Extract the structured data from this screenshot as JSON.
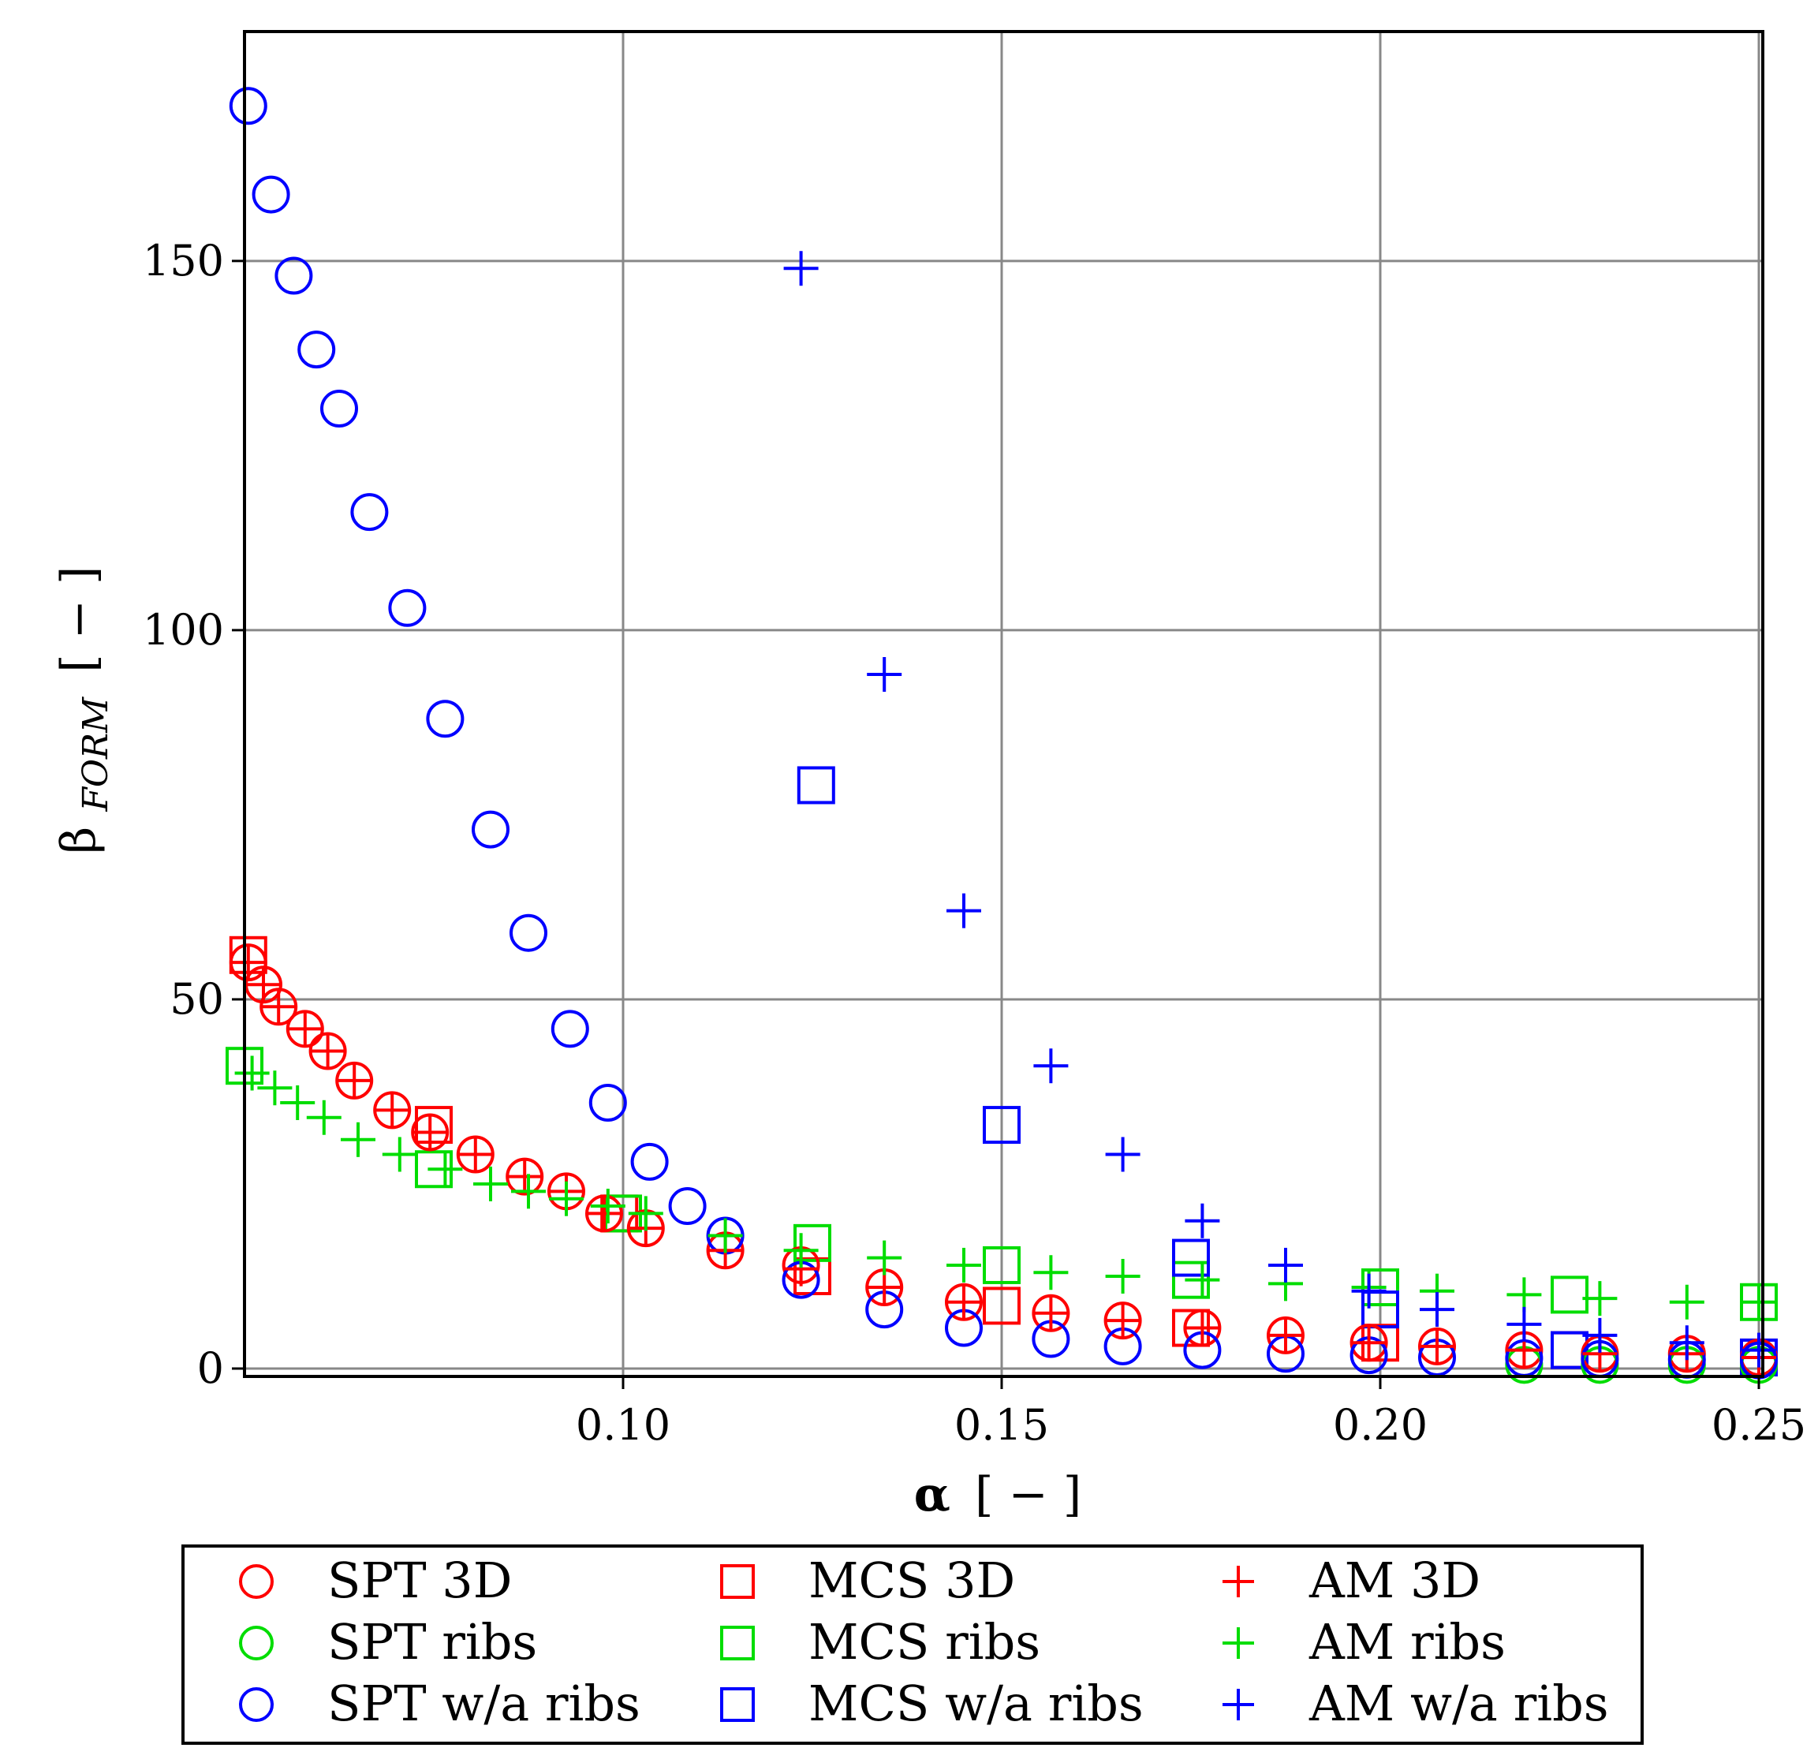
{
  "chart_data": {
    "type": "scatter",
    "xlabel": "α",
    "xlabel_unit": "[ − ]",
    "ylabel": "β",
    "ylabel_sub": "FORM",
    "ylabel_unit": "[ − ]",
    "xlim": [
      0.05,
      0.25
    ],
    "ylim": [
      0,
      180
    ],
    "xticks": [
      0.1,
      0.15,
      0.2,
      0.25
    ],
    "xtick_labels": [
      "0.10",
      "0.15",
      "0.20",
      "0.25"
    ],
    "yticks": [
      0,
      50,
      100,
      150
    ],
    "ytick_labels": [
      "0",
      "50",
      "100",
      "150"
    ],
    "grid": true,
    "legend_position": "bottom",
    "series": [
      {
        "name": "SPT 3D",
        "marker": "circle",
        "color": "#ff0000",
        "x": [
          0.0505,
          0.0525,
          0.0545,
          0.058,
          0.061,
          0.0645,
          0.0695,
          0.0745,
          0.0805,
          0.087,
          0.0925,
          0.0975,
          0.103,
          0.1135,
          0.1235,
          0.1345,
          0.145,
          0.1565,
          0.166,
          0.1765,
          0.1875,
          0.1985,
          0.2075,
          0.219,
          0.229,
          0.2405,
          0.25
        ],
        "y": [
          55,
          52,
          49,
          46,
          43,
          39,
          35,
          32,
          29,
          26,
          24,
          21,
          19,
          16,
          14,
          11,
          9,
          7.5,
          6.5,
          5.5,
          4.5,
          3.5,
          3,
          2.5,
          2,
          2,
          1.5
        ]
      },
      {
        "name": "SPT ribs",
        "marker": "circle",
        "color": "#00dd00",
        "x": [
          0.219,
          0.229,
          0.2405,
          0.25
        ],
        "y": [
          0.5,
          0.5,
          0.5,
          0.5
        ]
      },
      {
        "name": "SPT w/a ribs",
        "marker": "circle",
        "color": "#0000ff",
        "x": [
          0.0505,
          0.0535,
          0.0565,
          0.0595,
          0.0625,
          0.0665,
          0.0715,
          0.0765,
          0.0825,
          0.0875,
          0.093,
          0.098,
          0.1035,
          0.1085,
          0.1135,
          0.1235,
          0.1345,
          0.145,
          0.1565,
          0.166,
          0.1765,
          0.1875,
          0.1985,
          0.2075,
          0.219,
          0.229,
          0.2405,
          0.25
        ],
        "y": [
          171,
          159,
          148,
          138,
          130,
          116,
          103,
          88,
          73,
          59,
          46,
          36,
          28,
          22,
          18,
          12,
          8,
          5.5,
          4,
          3,
          2.5,
          2,
          1.8,
          1.5,
          1.4,
          1.3,
          1.2,
          1.1
        ]
      },
      {
        "name": "MCS 3D",
        "marker": "square",
        "color": "#ff0000",
        "x": [
          0.0505,
          0.075,
          0.0995,
          0.125,
          0.15,
          0.175,
          0.2,
          0.225,
          0.25
        ],
        "y": [
          56,
          33,
          21,
          12.5,
          8.5,
          5.5,
          3.5,
          2.5,
          1.5
        ]
      },
      {
        "name": "MCS ribs",
        "marker": "square",
        "color": "#00dd00",
        "x": [
          0.05,
          0.075,
          0.1,
          0.125,
          0.15,
          0.175,
          0.2,
          0.225,
          0.25
        ],
        "y": [
          41,
          27,
          21,
          17,
          14,
          12,
          11,
          10,
          9
        ]
      },
      {
        "name": "MCS w/a ribs",
        "marker": "square",
        "color": "#0000ff",
        "x": [
          0.1255,
          0.15,
          0.175,
          0.2,
          0.225,
          0.25
        ],
        "y": [
          79,
          33,
          15,
          8,
          2.5,
          1.5
        ]
      },
      {
        "name": "AM 3D",
        "marker": "plus",
        "color": "#ff0000",
        "x": [
          0.0505,
          0.0525,
          0.0545,
          0.058,
          0.061,
          0.0645,
          0.0695,
          0.0745,
          0.0805,
          0.087,
          0.0925,
          0.0975,
          0.103,
          0.1135,
          0.1235,
          0.1345,
          0.145,
          0.1565,
          0.166,
          0.1765,
          0.1875,
          0.1985,
          0.2075,
          0.219,
          0.229,
          0.2405,
          0.25
        ],
        "y": [
          55,
          52,
          49,
          46,
          43,
          39,
          35,
          32,
          29,
          26,
          24,
          21,
          19,
          16,
          13.5,
          11,
          9,
          7.5,
          6.5,
          5.5,
          4.5,
          3.5,
          3,
          2.5,
          2,
          2,
          1.5
        ]
      },
      {
        "name": "AM ribs",
        "marker": "plus",
        "color": "#00dd00",
        "x": [
          0.051,
          0.054,
          0.057,
          0.0605,
          0.065,
          0.0705,
          0.0765,
          0.0825,
          0.0875,
          0.0925,
          0.098,
          0.103,
          0.1135,
          0.1235,
          0.1345,
          0.145,
          0.1565,
          0.166,
          0.1765,
          0.1875,
          0.1985,
          0.2075,
          0.219,
          0.229,
          0.2405,
          0.25
        ],
        "y": [
          40,
          38,
          36,
          34,
          31,
          29,
          27,
          25,
          24,
          23,
          22,
          21,
          18,
          16,
          15,
          14,
          13,
          12.5,
          12,
          11.5,
          11,
          10.5,
          10,
          9.5,
          9,
          9
        ]
      },
      {
        "name": "AM w/a ribs",
        "marker": "plus",
        "color": "#0000ff",
        "x": [
          0.1235,
          0.1345,
          0.145,
          0.1565,
          0.166,
          0.1765,
          0.1875,
          0.1985,
          0.2075,
          0.219,
          0.229,
          0.2405,
          0.25
        ],
        "y": [
          149,
          94,
          62,
          41,
          29,
          20,
          14,
          10.5,
          8,
          6,
          4.5,
          3.5,
          2.5
        ]
      }
    ]
  }
}
